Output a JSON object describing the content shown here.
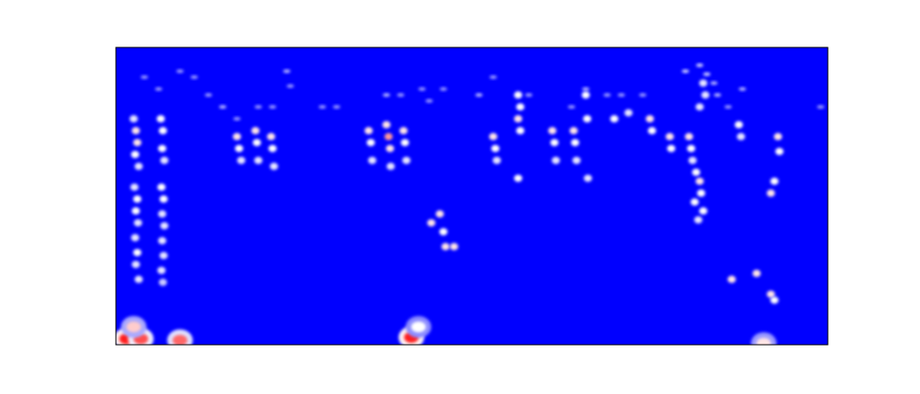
{
  "chart_data": {
    "type": "heatmap",
    "title": "",
    "xlabel": "",
    "ylabel": "",
    "colorscale": [
      "#0000ff",
      "#ffffff",
      "#ff0000"
    ],
    "background_value": 0.0,
    "axes_visible": false,
    "x_range": [
      0,
      100
    ],
    "y_range": [
      0,
      100
    ],
    "hot_spots": [
      {
        "x": 1.5,
        "y": 2.0,
        "value": 0.95
      },
      {
        "x": 3.5,
        "y": 2.0,
        "value": 0.85
      },
      {
        "x": 2.5,
        "y": 6.0,
        "value": 0.6
      },
      {
        "x": 9.0,
        "y": 1.5,
        "value": 0.8
      },
      {
        "x": 41.5,
        "y": 2.5,
        "value": 0.95
      },
      {
        "x": 42.5,
        "y": 6.0,
        "value": 0.5
      },
      {
        "x": 91.0,
        "y": 0.5,
        "value": 0.55
      }
    ],
    "points": [
      {
        "x": 2.5,
        "y": 76,
        "value": 0.45
      },
      {
        "x": 2.8,
        "y": 72,
        "value": 0.55
      },
      {
        "x": 3.0,
        "y": 68,
        "value": 0.55
      },
      {
        "x": 2.7,
        "y": 64,
        "value": 0.5
      },
      {
        "x": 3.2,
        "y": 60,
        "value": 0.45
      },
      {
        "x": 2.6,
        "y": 53,
        "value": 0.45
      },
      {
        "x": 3.0,
        "y": 49,
        "value": 0.5
      },
      {
        "x": 2.8,
        "y": 45,
        "value": 0.5
      },
      {
        "x": 3.1,
        "y": 41,
        "value": 0.45
      },
      {
        "x": 2.7,
        "y": 36,
        "value": 0.45
      },
      {
        "x": 3.0,
        "y": 31,
        "value": 0.5
      },
      {
        "x": 2.8,
        "y": 27,
        "value": 0.45
      },
      {
        "x": 3.2,
        "y": 22,
        "value": 0.45
      },
      {
        "x": 6.3,
        "y": 76,
        "value": 0.5
      },
      {
        "x": 6.6,
        "y": 72,
        "value": 0.5
      },
      {
        "x": 6.5,
        "y": 66,
        "value": 0.5
      },
      {
        "x": 6.8,
        "y": 62,
        "value": 0.45
      },
      {
        "x": 6.4,
        "y": 53,
        "value": 0.5
      },
      {
        "x": 6.7,
        "y": 49,
        "value": 0.5
      },
      {
        "x": 6.5,
        "y": 44,
        "value": 0.45
      },
      {
        "x": 6.8,
        "y": 40,
        "value": 0.45
      },
      {
        "x": 6.5,
        "y": 35,
        "value": 0.45
      },
      {
        "x": 6.7,
        "y": 30,
        "value": 0.45
      },
      {
        "x": 6.4,
        "y": 25,
        "value": 0.45
      },
      {
        "x": 6.6,
        "y": 21,
        "value": 0.4
      },
      {
        "x": 17.0,
        "y": 70,
        "value": 0.55
      },
      {
        "x": 17.3,
        "y": 66,
        "value": 0.5
      },
      {
        "x": 17.6,
        "y": 62,
        "value": 0.45
      },
      {
        "x": 19.6,
        "y": 72,
        "value": 0.55
      },
      {
        "x": 19.8,
        "y": 68,
        "value": 0.5
      },
      {
        "x": 20.0,
        "y": 62,
        "value": 0.45
      },
      {
        "x": 21.8,
        "y": 70,
        "value": 0.55
      },
      {
        "x": 22.0,
        "y": 66,
        "value": 0.5
      },
      {
        "x": 22.2,
        "y": 60,
        "value": 0.45
      },
      {
        "x": 35.5,
        "y": 72,
        "value": 0.55
      },
      {
        "x": 35.8,
        "y": 68,
        "value": 0.5
      },
      {
        "x": 36.0,
        "y": 62,
        "value": 0.45
      },
      {
        "x": 38.0,
        "y": 74,
        "value": 0.55
      },
      {
        "x": 38.3,
        "y": 70,
        "value": 0.7
      },
      {
        "x": 38.5,
        "y": 66,
        "value": 0.55
      },
      {
        "x": 38.6,
        "y": 60,
        "value": 0.45
      },
      {
        "x": 40.4,
        "y": 72,
        "value": 0.55
      },
      {
        "x": 40.6,
        "y": 68,
        "value": 0.5
      },
      {
        "x": 40.8,
        "y": 62,
        "value": 0.45
      },
      {
        "x": 44.3,
        "y": 41,
        "value": 0.55
      },
      {
        "x": 45.5,
        "y": 44,
        "value": 0.55
      },
      {
        "x": 46.0,
        "y": 38,
        "value": 0.5
      },
      {
        "x": 46.3,
        "y": 33,
        "value": 0.55
      },
      {
        "x": 47.5,
        "y": 33,
        "value": 0.55
      },
      {
        "x": 53.0,
        "y": 70,
        "value": 0.55
      },
      {
        "x": 53.3,
        "y": 66,
        "value": 0.5
      },
      {
        "x": 53.5,
        "y": 62,
        "value": 0.45
      },
      {
        "x": 56.5,
        "y": 84,
        "value": 0.5
      },
      {
        "x": 56.8,
        "y": 80,
        "value": 0.5
      },
      {
        "x": 56.5,
        "y": 76,
        "value": 0.55
      },
      {
        "x": 56.8,
        "y": 72,
        "value": 0.5
      },
      {
        "x": 56.5,
        "y": 56,
        "value": 0.5
      },
      {
        "x": 61.3,
        "y": 72,
        "value": 0.55
      },
      {
        "x": 61.6,
        "y": 68,
        "value": 0.5
      },
      {
        "x": 61.8,
        "y": 62,
        "value": 0.45
      },
      {
        "x": 64.3,
        "y": 72,
        "value": 0.55
      },
      {
        "x": 64.5,
        "y": 68,
        "value": 0.5
      },
      {
        "x": 64.7,
        "y": 62,
        "value": 0.45
      },
      {
        "x": 66.0,
        "y": 84,
        "value": 0.5
      },
      {
        "x": 66.2,
        "y": 76,
        "value": 0.5
      },
      {
        "x": 66.3,
        "y": 56,
        "value": 0.45
      },
      {
        "x": 70.0,
        "y": 76,
        "value": 0.5
      },
      {
        "x": 72.0,
        "y": 78,
        "value": 0.45
      },
      {
        "x": 75.0,
        "y": 76,
        "value": 0.55
      },
      {
        "x": 75.3,
        "y": 72,
        "value": 0.5
      },
      {
        "x": 77.8,
        "y": 70,
        "value": 0.55
      },
      {
        "x": 78.0,
        "y": 66,
        "value": 0.5
      },
      {
        "x": 80.5,
        "y": 70,
        "value": 0.55
      },
      {
        "x": 80.8,
        "y": 66,
        "value": 0.5
      },
      {
        "x": 81.0,
        "y": 62,
        "value": 0.45
      },
      {
        "x": 81.5,
        "y": 58,
        "value": 0.5
      },
      {
        "x": 82.0,
        "y": 55,
        "value": 0.55
      },
      {
        "x": 82.2,
        "y": 51,
        "value": 0.5
      },
      {
        "x": 81.3,
        "y": 48,
        "value": 0.5
      },
      {
        "x": 82.5,
        "y": 45,
        "value": 0.5
      },
      {
        "x": 81.8,
        "y": 42,
        "value": 0.45
      },
      {
        "x": 82.5,
        "y": 88,
        "value": 0.45
      },
      {
        "x": 82.8,
        "y": 84,
        "value": 0.45
      },
      {
        "x": 82.0,
        "y": 80,
        "value": 0.45
      },
      {
        "x": 87.5,
        "y": 74,
        "value": 0.5
      },
      {
        "x": 87.8,
        "y": 70,
        "value": 0.45
      },
      {
        "x": 93.0,
        "y": 70,
        "value": 0.55
      },
      {
        "x": 93.2,
        "y": 65,
        "value": 0.5
      },
      {
        "x": 92.5,
        "y": 55,
        "value": 0.5
      },
      {
        "x": 92.0,
        "y": 51,
        "value": 0.55
      },
      {
        "x": 86.5,
        "y": 22,
        "value": 0.55
      },
      {
        "x": 90.0,
        "y": 24,
        "value": 0.55
      },
      {
        "x": 92.0,
        "y": 17,
        "value": 0.55
      },
      {
        "x": 92.5,
        "y": 15,
        "value": 0.5
      }
    ],
    "speckles": [
      {
        "x": 4,
        "y": 90,
        "value": 0.3
      },
      {
        "x": 6,
        "y": 86,
        "value": 0.3
      },
      {
        "x": 9,
        "y": 92,
        "value": 0.3
      },
      {
        "x": 11,
        "y": 90,
        "value": 0.3
      },
      {
        "x": 13,
        "y": 84,
        "value": 0.3
      },
      {
        "x": 15,
        "y": 80,
        "value": 0.35
      },
      {
        "x": 17,
        "y": 76,
        "value": 0.3
      },
      {
        "x": 20,
        "y": 80,
        "value": 0.3
      },
      {
        "x": 24,
        "y": 92,
        "value": 0.35
      },
      {
        "x": 24.5,
        "y": 87,
        "value": 0.3
      },
      {
        "x": 22,
        "y": 80,
        "value": 0.3
      },
      {
        "x": 29,
        "y": 80,
        "value": 0.3
      },
      {
        "x": 31,
        "y": 80,
        "value": 0.3
      },
      {
        "x": 38,
        "y": 84,
        "value": 0.35
      },
      {
        "x": 40,
        "y": 84,
        "value": 0.3
      },
      {
        "x": 43,
        "y": 86,
        "value": 0.3
      },
      {
        "x": 44,
        "y": 82,
        "value": 0.3
      },
      {
        "x": 46,
        "y": 86,
        "value": 0.3
      },
      {
        "x": 51,
        "y": 84,
        "value": 0.35
      },
      {
        "x": 53,
        "y": 90,
        "value": 0.3
      },
      {
        "x": 58,
        "y": 84,
        "value": 0.3
      },
      {
        "x": 64,
        "y": 80,
        "value": 0.3
      },
      {
        "x": 66,
        "y": 86,
        "value": 0.35
      },
      {
        "x": 69,
        "y": 84,
        "value": 0.3
      },
      {
        "x": 71,
        "y": 84,
        "value": 0.3
      },
      {
        "x": 74,
        "y": 84,
        "value": 0.3
      },
      {
        "x": 80,
        "y": 92,
        "value": 0.4
      },
      {
        "x": 82,
        "y": 94,
        "value": 0.4
      },
      {
        "x": 83,
        "y": 91,
        "value": 0.4
      },
      {
        "x": 84,
        "y": 88,
        "value": 0.35
      },
      {
        "x": 84.5,
        "y": 84,
        "value": 0.35
      },
      {
        "x": 88,
        "y": 86,
        "value": 0.35
      },
      {
        "x": 86,
        "y": 80,
        "value": 0.3
      },
      {
        "x": 99,
        "y": 80,
        "value": 0.3
      }
    ]
  }
}
